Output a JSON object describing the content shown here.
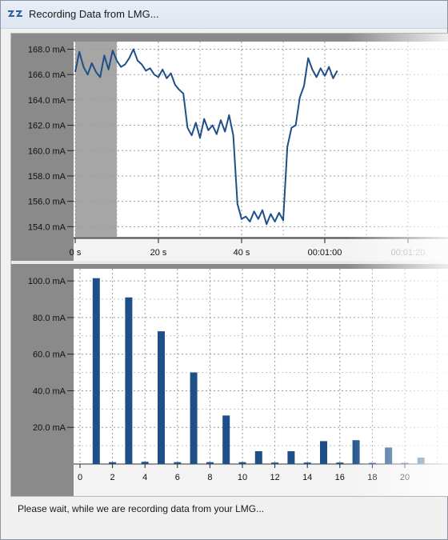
{
  "window": {
    "title": "Recording Data from LMG...",
    "status_text": "Please wait, while we are recording data from your LMG..."
  },
  "colors": {
    "line": "#1f4f88",
    "bar": "#1f4f88",
    "plot_bg": "#ffffff",
    "axis_bg": "#8a8a8a",
    "shaded_region": "#a6a6a6"
  },
  "chart_data": [
    {
      "type": "line",
      "name": "time-series",
      "ylabel_unit": "mA",
      "x_tick_labels": [
        "0 s",
        "20 s",
        "40 s",
        "00:01:00",
        "00:01:20"
      ],
      "x_tick_values": [
        0,
        20,
        40,
        60,
        80
      ],
      "y_tick_labels": [
        "168.0 mA",
        "166.0 mA",
        "164.0 mA",
        "162.0 mA",
        "160.0 mA",
        "158.0 mA",
        "156.0 mA",
        "154.0 mA"
      ],
      "y_tick_values": [
        168,
        166,
        164,
        162,
        160,
        158,
        156,
        154
      ],
      "xlim": [
        0,
        80
      ],
      "ylim": [
        153.2,
        168.6
      ],
      "grid": true,
      "shaded_region_x": [
        0,
        10
      ],
      "x": [
        0,
        1,
        2,
        3,
        4,
        5,
        6,
        7,
        8,
        9,
        10,
        11,
        12,
        13,
        14,
        15,
        16,
        17,
        18,
        19,
        20,
        21,
        22,
        23,
        24,
        25,
        26,
        27,
        28,
        29,
        30,
        31,
        32,
        33,
        34,
        35,
        36,
        37,
        38,
        39,
        40,
        41,
        42,
        43,
        44,
        45,
        46,
        47,
        48,
        49,
        50,
        51,
        52,
        53,
        54,
        55,
        56,
        57,
        58,
        59,
        60,
        61,
        62,
        63
      ],
      "y": [
        166.2,
        167.8,
        166.6,
        166.0,
        166.9,
        166.2,
        165.8,
        167.5,
        166.4,
        167.9,
        167.1,
        166.6,
        166.8,
        167.3,
        168.0,
        167.1,
        166.8,
        166.3,
        166.5,
        166.0,
        165.8,
        166.4,
        165.7,
        166.1,
        165.2,
        164.8,
        164.5,
        161.8,
        161.2,
        162.2,
        161.0,
        162.5,
        161.6,
        162.0,
        161.3,
        162.4,
        161.5,
        162.8,
        161.2,
        155.8,
        154.6,
        154.8,
        154.4,
        155.2,
        154.6,
        155.3,
        154.2,
        155.0,
        154.4,
        155.1,
        154.5,
        160.3,
        161.8,
        162.0,
        164.2,
        165.1,
        167.3,
        166.4,
        165.8,
        166.5,
        165.9,
        166.6,
        165.7,
        166.3
      ]
    },
    {
      "type": "bar",
      "name": "harmonics",
      "ylabel_unit": "mA",
      "x_tick_labels": [
        "0",
        "2",
        "4",
        "6",
        "8",
        "10",
        "12",
        "14",
        "16",
        "18",
        "20"
      ],
      "y_tick_labels": [
        "100.0 mA",
        "80.0 mA",
        "60.0 mA",
        "40.0 mA",
        "20.0 mA"
      ],
      "y_tick_values": [
        100,
        80,
        60,
        40,
        20
      ],
      "xlim": [
        -0.5,
        21.5
      ],
      "ylim": [
        0,
        104
      ],
      "grid": true,
      "categories": [
        1,
        2,
        3,
        4,
        5,
        6,
        7,
        8,
        9,
        10,
        11,
        12,
        13,
        14,
        15,
        16,
        17,
        18,
        19,
        20,
        21
      ],
      "values": [
        101.5,
        1.0,
        91.0,
        1.2,
        72.5,
        1.0,
        50.0,
        1.0,
        26.5,
        1.0,
        7.0,
        0.8,
        7.0,
        0.8,
        12.5,
        0.8,
        13.0,
        0.6,
        9.0,
        0.6,
        3.5
      ]
    }
  ]
}
